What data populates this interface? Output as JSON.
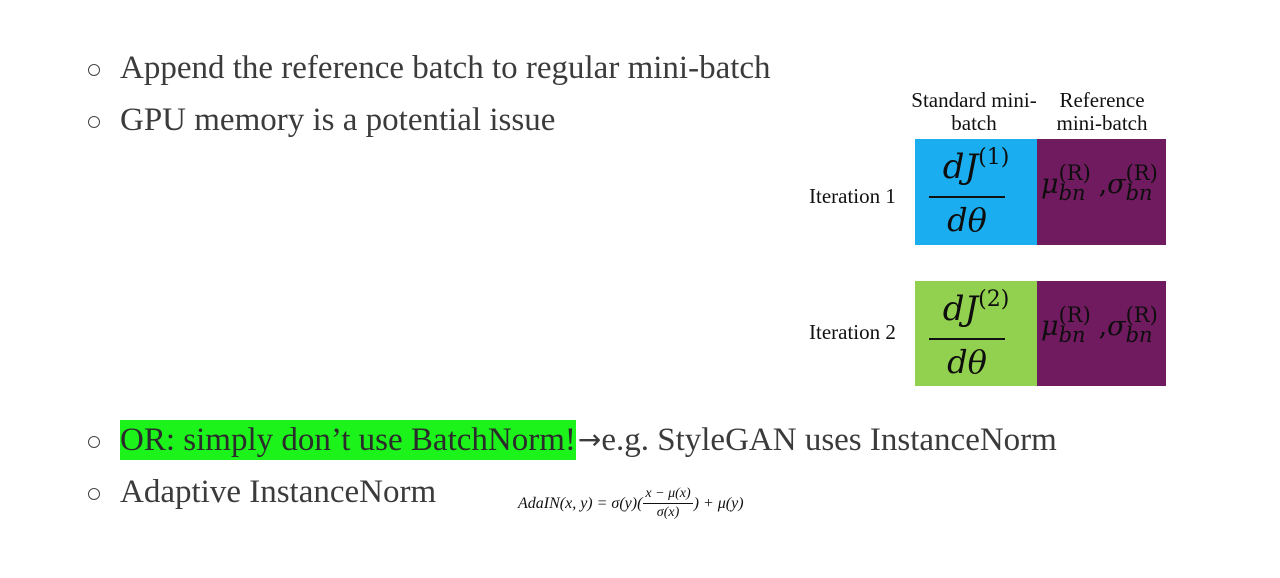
{
  "bullets": [
    {
      "text": "Append the reference batch to regular mini-batch"
    },
    {
      "text": "GPU memory is a potential issue"
    },
    {
      "highlight": "OR: simply don’t use BatchNorm!",
      "arrow": "→",
      "rest": "e.g. StyleGAN uses InstanceNorm"
    },
    {
      "text": "Adaptive InstanceNorm"
    }
  ],
  "diagram": {
    "col_standard": "Standard mini-batch",
    "col_reference": "Reference mini-batch",
    "iterations": [
      {
        "label": "Iteration 1",
        "numerator": "dJ",
        "superscript": "(1)",
        "denominator": "dθ",
        "color": "#1aaef0"
      },
      {
        "label": "Iteration 2",
        "numerator": "dJ",
        "superscript": "(2)",
        "denominator": "dθ",
        "color": "#92d050"
      }
    ],
    "reference_color": "#701b5f",
    "reference_stats": {
      "mu": "μ",
      "sigma": "σ",
      "sup": "(R)",
      "sub": "bn",
      "sep": ","
    }
  },
  "formula": {
    "lhs": "AdaIN(x, y) = σ(y)(",
    "num": "x − μ(x)",
    "den": "σ(x)",
    "rhs": ") + μ(y)"
  }
}
